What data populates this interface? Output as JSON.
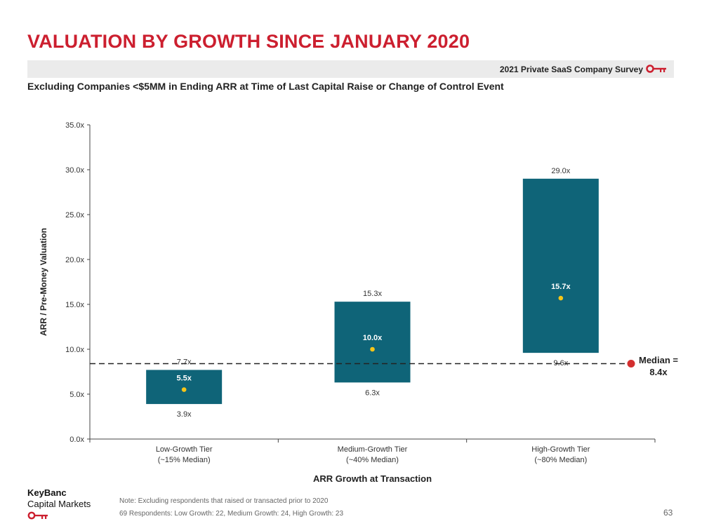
{
  "header": {
    "title": "VALUATION BY GROWTH SINCE JANUARY 2020",
    "survey_label": "2021 Private SaaS Company Survey",
    "subtitle": "Excluding Companies <$5MM in Ending ARR at Time of Last Capital Raise or Change of Control Event"
  },
  "colors": {
    "title_red": "#cc1f2f",
    "bar_teal": "#0f6478",
    "median_dot": "#f5c518",
    "median_line_marker": "#d32f2f"
  },
  "chart_data": {
    "type": "floating-range-bar",
    "categories": [
      [
        "Low-Growth Tier",
        "(~15% Median)"
      ],
      [
        "Medium-Growth Tier",
        "(~40% Median)"
      ],
      [
        "High-Growth Tier",
        "(~80% Median)"
      ]
    ],
    "series": [
      {
        "name": "",
        "low": [
          3.9,
          6.3,
          9.6
        ],
        "high": [
          7.7,
          15.3,
          29.0
        ],
        "median": [
          5.5,
          10.0,
          15.7
        ]
      }
    ],
    "low_labels": [
      "3.9x",
      "6.3x",
      "9.6x"
    ],
    "high_labels": [
      "7.7x",
      "15.3x",
      "29.0x"
    ],
    "median_labels": [
      "5.5x",
      "10.0x",
      "15.7x"
    ],
    "overall_median": {
      "value": 8.4,
      "label_line1": "Median =",
      "label_line2": "8.4x"
    },
    "ylim": [
      0,
      35
    ],
    "yticks": [
      0,
      5,
      10,
      15,
      20,
      25,
      30,
      35
    ],
    "ytick_labels": [
      "0.0x",
      "5.0x",
      "10.0x",
      "15.0x",
      "20.0x",
      "25.0x",
      "30.0x",
      "35.0x"
    ],
    "ylabel": "ARR / Pre-Money Valuation",
    "xlabel": "ARR Growth at Transaction",
    "grid": false
  },
  "footer": {
    "logo_line1": "KeyBanc",
    "logo_line2": "Capital Markets",
    "note_line1": "Note: Excluding respondents that raised or transacted prior to 2020",
    "note_line2": "69 Respondents: Low Growth: 22, Medium Growth: 24, High Growth: 23",
    "page_number": "63"
  }
}
